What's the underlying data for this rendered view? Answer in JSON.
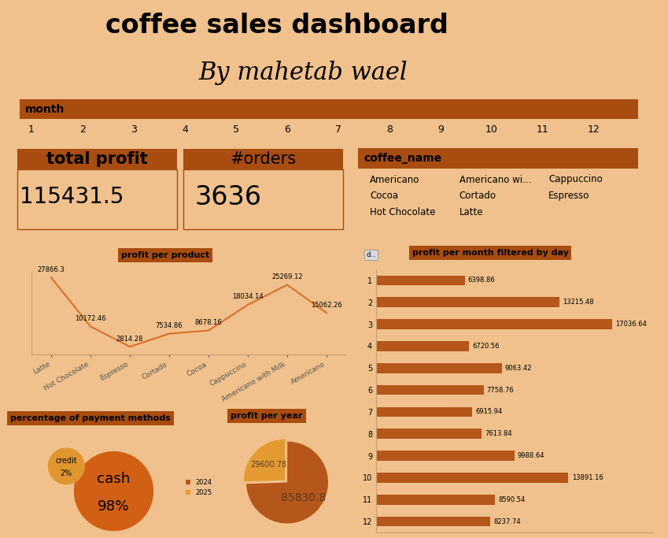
{
  "header": {
    "title": "coffee sales dashboard",
    "subtitle": "By mahetab wael"
  },
  "slicers": [
    {
      "title": "month",
      "items": [
        1,
        2,
        3,
        4,
        5,
        6,
        7,
        8,
        9,
        10,
        11,
        12
      ]
    },
    {
      "title": "coffee_name",
      "items": [
        "Americano",
        "Americano wi...",
        "Cappuccino",
        "Cocoa",
        "Cortado",
        "Espresso",
        "Hot Chocolate",
        "Latte"
      ]
    }
  ],
  "kpis": [
    {
      "title": "total profit",
      "value": 115431.5
    },
    {
      "title": "#orders",
      "value": 3636
    }
  ],
  "chart_data": [
    {
      "type": "line",
      "title": "profit per product",
      "categories": [
        "Latte",
        "Hot Chocolate",
        "Espresso",
        "Cortado",
        "Cocoa",
        "Cappuccino",
        "Americano with Milk",
        "Americano"
      ],
      "values": [
        27866.3,
        10172.46,
        2814.28,
        7534.86,
        8678.16,
        18034.14,
        25269.12,
        15062.26
      ],
      "color": "#d9702a",
      "ylim": [
        0,
        30000
      ],
      "data_labels": true,
      "tick_labels": "x"
    },
    {
      "type": "bar",
      "orientation": "horizontal",
      "title": "profit per month filtered by day",
      "annotations": [
        "d..."
      ],
      "categories": [
        "1",
        "2",
        "3",
        "4",
        "5",
        "6",
        "7",
        "8",
        "9",
        "10",
        "11",
        "12"
      ],
      "values": [
        6398.86,
        13215.48,
        17036.64,
        6720.56,
        9063.42,
        7758.76,
        6915.94,
        7613.84,
        9988.64,
        13891.16,
        8590.54,
        8237.74
      ],
      "color": "#b5561b",
      "xlim": [
        0,
        20000
      ],
      "data_labels": true,
      "tick_labels": "y"
    },
    {
      "type": "bubble",
      "title": "percentage of payment methods",
      "categories": [
        "credit",
        "cash"
      ],
      "values": [
        2,
        98
      ],
      "value_labels": [
        "2%",
        "98%"
      ],
      "colors": [
        "#e0962e",
        "#d15f14"
      ],
      "data_labels": true
    },
    {
      "type": "pie",
      "title": "profit per year",
      "categories": [
        "2024",
        "2025"
      ],
      "values": [
        85830.8,
        29600.78
      ],
      "colors": [
        "#b5561b",
        "#e39a30"
      ],
      "data_labels": true,
      "legend": "center left"
    }
  ]
}
